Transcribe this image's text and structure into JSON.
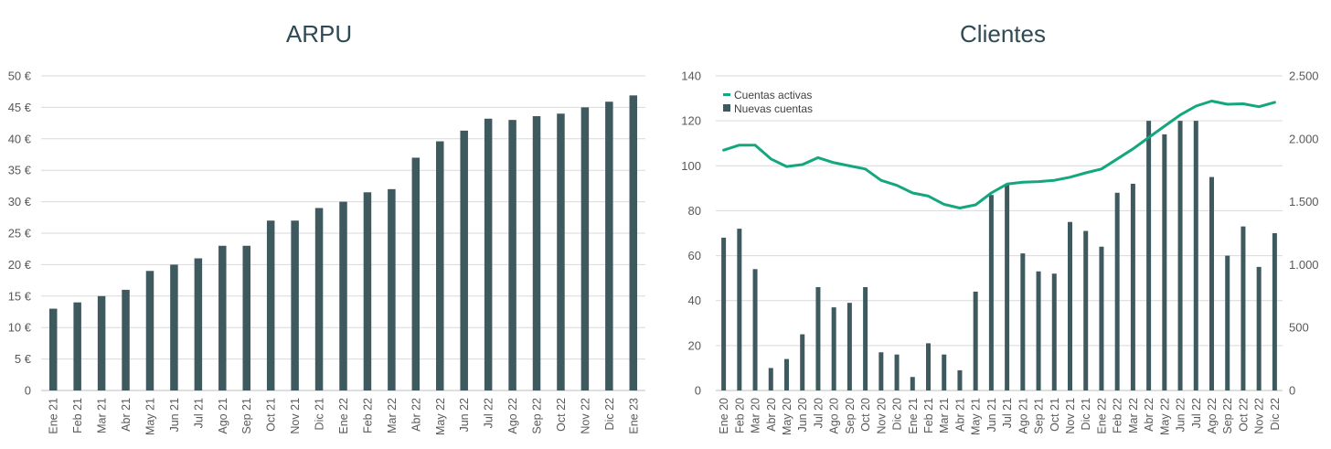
{
  "colors": {
    "bar": "#3e5a5f",
    "line": "#14a77d",
    "grid": "#d9d9d9",
    "text": "#595959",
    "title": "#2e4a53"
  },
  "chart_data": [
    {
      "type": "bar",
      "title": "ARPU",
      "xlabel": "",
      "ylabel": "",
      "ylim": [
        0,
        50
      ],
      "yticks": [
        0,
        5,
        10,
        15,
        20,
        25,
        30,
        35,
        40,
        45,
        50
      ],
      "ytick_labels": [
        "0",
        "5 €",
        "10 €",
        "15 €",
        "20 €",
        "25 €",
        "30 €",
        "35 €",
        "40 €",
        "45 €",
        "50 €"
      ],
      "categories": [
        "Ene 21",
        "Feb 21",
        "Mar 21",
        "Abr 21",
        "May 21",
        "Jun 21",
        "Jul 21",
        "Ago 21",
        "Sep 21",
        "Oct 21",
        "Nov 21",
        "Dic 21",
        "Ene 22",
        "Feb 22",
        "Mar 22",
        "Abr 22",
        "May 22",
        "Jun 22",
        "Jul 22",
        "Ago 22",
        "Sep 22",
        "Oct 22",
        "Nov 22",
        "Dic 22",
        "Ene 23"
      ],
      "values": [
        13,
        14,
        15,
        16,
        19,
        20,
        21,
        23,
        23,
        27,
        27,
        29,
        30,
        31.5,
        32,
        37,
        39.6,
        41.3,
        43.2,
        43,
        43.6,
        44,
        45,
        45.9,
        46.9
      ],
      "grid": true
    },
    {
      "type": "bar+line",
      "title": "Clientes",
      "categories": [
        "Ene 20",
        "Feb 20",
        "Mar 20",
        "Abr 20",
        "May 20",
        "Jun 20",
        "Jul 20",
        "Ago 20",
        "Sep 20",
        "Oct 20",
        "Nov 20",
        "Dic 20",
        "Ene 21",
        "Feb 21",
        "Mar 21",
        "Abr 21",
        "May 21",
        "Jun 21",
        "Jul 21",
        "Ago 21",
        "Sep 21",
        "Oct 21",
        "Nov 21",
        "Dic 21",
        "Ene 22",
        "Feb 22",
        "Mar 22",
        "Abr 22",
        "May 22",
        "Jun 22",
        "Jul 22",
        "Ago 22",
        "Sep 22",
        "Oct 22",
        "Nov 22",
        "Dic 22"
      ],
      "ylim_left": [
        0,
        140
      ],
      "yticks_left": [
        0,
        20,
        40,
        60,
        80,
        100,
        120,
        140
      ],
      "ytick_labels_left": [
        "0",
        "20",
        "40",
        "60",
        "80",
        "100",
        "120",
        "140"
      ],
      "ylim_right": [
        0,
        2500
      ],
      "yticks_right": [
        0,
        500,
        1000,
        1500,
        2000,
        2500
      ],
      "ytick_labels_right": [
        "0",
        "500",
        "1.000",
        "1.500",
        "2.000",
        "2.500"
      ],
      "legend_position": "top-left",
      "series": [
        {
          "name": "Cuentas activas",
          "type": "line",
          "axis": "right",
          "values": [
            1910,
            1950,
            1950,
            1840,
            1780,
            1795,
            1850,
            1810,
            1785,
            1760,
            1670,
            1630,
            1570,
            1545,
            1480,
            1450,
            1475,
            1570,
            1640,
            1655,
            1660,
            1670,
            1695,
            1730,
            1760,
            1840,
            1920,
            2010,
            2100,
            2190,
            2260,
            2300,
            2275,
            2278,
            2255,
            2290
          ]
        },
        {
          "name": "Nuevas cuentas",
          "type": "bar",
          "axis": "left",
          "values": [
            68,
            72,
            54,
            10,
            14,
            25,
            46,
            37,
            39,
            46,
            17,
            16,
            6,
            21,
            16,
            9,
            44,
            87,
            92,
            61,
            53,
            52,
            75,
            71,
            64,
            88,
            92,
            120,
            114,
            120,
            120,
            95,
            60,
            73,
            55,
            70
          ]
        }
      ],
      "grid": true
    }
  ]
}
